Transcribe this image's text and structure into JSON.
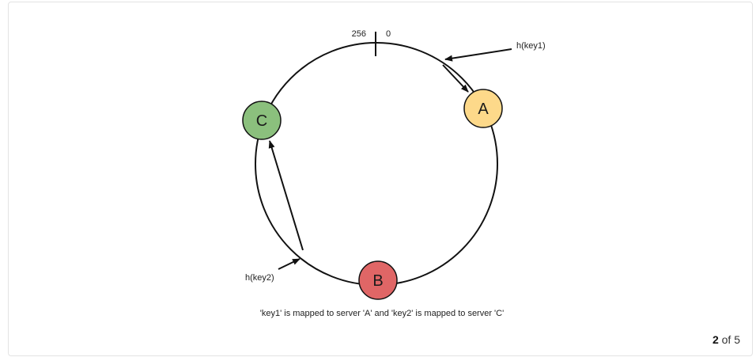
{
  "diagram": {
    "ring_labels": {
      "max": "256",
      "min": "0"
    },
    "keys": [
      {
        "id": "key1",
        "label": "h(key1)"
      },
      {
        "id": "key2",
        "label": "h(key2)"
      }
    ],
    "servers": [
      {
        "id": "A",
        "label": "A",
        "color": "#fdd98a"
      },
      {
        "id": "B",
        "label": "B",
        "color": "#e06666"
      },
      {
        "id": "C",
        "label": "C",
        "color": "#8bc07d"
      }
    ],
    "caption": "'key1' is mapped to server 'A' and 'key2' is mapped to server 'C'"
  },
  "pager": {
    "current": "2",
    "separator": "of",
    "total": "5"
  }
}
